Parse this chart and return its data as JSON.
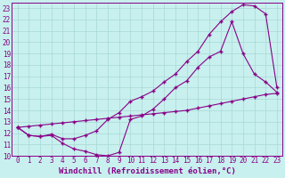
{
  "xlabel": "Windchill (Refroidissement éolien,°C)",
  "xlim": [
    -0.5,
    23.5
  ],
  "ylim": [
    10,
    23.5
  ],
  "xticks": [
    0,
    1,
    2,
    3,
    4,
    5,
    6,
    7,
    8,
    9,
    10,
    11,
    12,
    13,
    14,
    15,
    16,
    17,
    18,
    19,
    20,
    21,
    22,
    23
  ],
  "yticks": [
    10,
    11,
    12,
    13,
    14,
    15,
    16,
    17,
    18,
    19,
    20,
    21,
    22,
    23
  ],
  "bg_color": "#c8f0ee",
  "grid_color": "#a8d8d4",
  "line_color": "#880088",
  "line1_x": [
    0,
    1,
    2,
    3,
    4,
    5,
    6,
    7,
    8,
    9,
    10,
    11,
    12,
    13,
    14,
    15,
    16,
    17,
    18,
    19,
    20,
    21,
    22,
    23
  ],
  "line1_y": [
    12.5,
    11.8,
    11.7,
    11.8,
    11.1,
    10.6,
    10.4,
    10.1,
    10.0,
    10.3,
    13.2,
    13.5,
    14.1,
    15.0,
    16.0,
    16.6,
    17.8,
    18.7,
    19.2,
    21.8,
    19.0,
    17.2,
    16.5,
    15.6
  ],
  "line2_x": [
    0,
    1,
    2,
    3,
    4,
    5,
    6,
    7,
    8,
    9,
    10,
    11,
    12,
    13,
    14,
    15,
    16,
    17,
    18,
    19,
    20,
    21,
    22,
    23
  ],
  "line2_y": [
    12.5,
    11.8,
    11.7,
    11.9,
    11.5,
    11.5,
    11.8,
    12.2,
    13.2,
    13.8,
    14.8,
    15.2,
    15.7,
    16.5,
    17.2,
    18.3,
    19.2,
    20.7,
    21.8,
    22.7,
    23.3,
    23.2,
    22.5,
    16.0
  ],
  "line3_x": [
    0,
    1,
    2,
    3,
    4,
    5,
    6,
    7,
    8,
    9,
    10,
    11,
    12,
    13,
    14,
    15,
    16,
    17,
    18,
    19,
    20,
    21,
    22,
    23
  ],
  "line3_y": [
    12.5,
    12.6,
    12.7,
    12.8,
    12.9,
    13.0,
    13.1,
    13.2,
    13.3,
    13.4,
    13.5,
    13.6,
    13.7,
    13.8,
    13.9,
    14.0,
    14.2,
    14.4,
    14.6,
    14.8,
    15.0,
    15.2,
    15.4,
    15.5
  ],
  "font_size": 6.5,
  "tick_font_size": 5.5,
  "xlabel_font_size": 6.5
}
